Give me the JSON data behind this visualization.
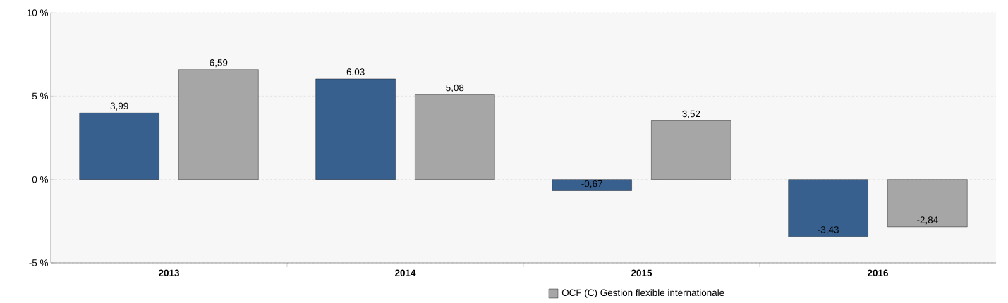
{
  "chart_data": {
    "type": "bar",
    "categories": [
      "2013",
      "2014",
      "2015",
      "2016"
    ],
    "series": [
      {
        "color": "#37608f",
        "values": [
          3.99,
          6.03,
          -0.67,
          -3.43
        ],
        "value_labels": [
          "3,99",
          "6,03",
          "-0,67",
          "-3,43"
        ]
      },
      {
        "name": "OCF (C) Gestion flexible internationale",
        "color": "#a6a6a6",
        "values": [
          6.59,
          5.08,
          3.52,
          -2.84
        ],
        "value_labels": [
          "6,59",
          "5,08",
          "3,52",
          "-2,84"
        ]
      }
    ],
    "ylim": [
      -5,
      10
    ],
    "yticks": [
      {
        "value": -5,
        "label": "-5 %"
      },
      {
        "value": 0,
        "label": "0 %"
      },
      {
        "value": 5,
        "label": "5 %"
      },
      {
        "value": 10,
        "label": "10 %"
      }
    ],
    "grid": "y",
    "legend": "bottom"
  }
}
